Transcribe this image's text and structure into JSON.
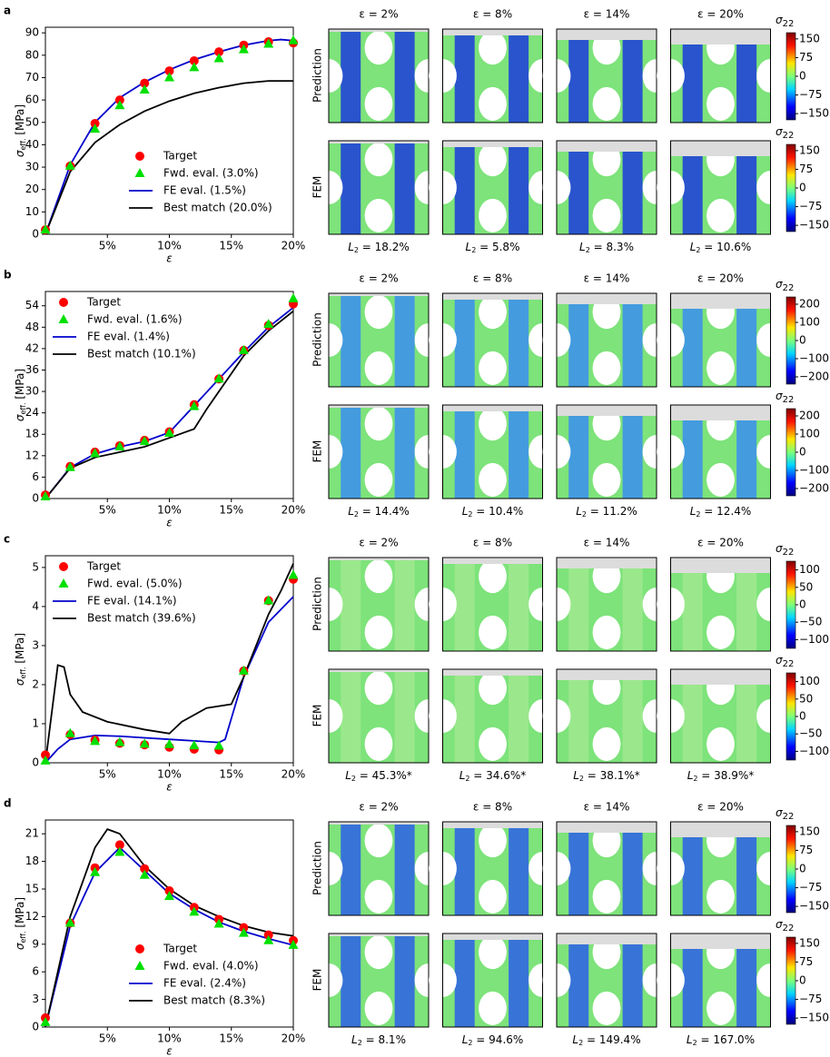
{
  "chart_data": [
    {
      "type": "line",
      "xlabel": "ε",
      "ylabel": [
        "σ",
        "eff.",
        " [MPa]"
      ],
      "legend": "lower right",
      "x": [
        0,
        2,
        4,
        6,
        8,
        10,
        12,
        14,
        16,
        18,
        20
      ],
      "xlim": [
        0,
        20
      ],
      "xticks": [
        {
          "value": 5,
          "label": "5%"
        },
        {
          "value": 10,
          "label": "10%"
        },
        {
          "value": 15,
          "label": "15%"
        },
        {
          "value": 20,
          "label": "20%"
        }
      ],
      "ylim": [
        0,
        92.5
      ],
      "yticks": [
        0,
        10,
        20,
        30,
        40,
        50,
        60,
        70,
        80,
        90
      ],
      "series": [
        {
          "name": "Target",
          "color": "#ff0000",
          "marker": "circle",
          "values": [
            2,
            30.5,
            49.5,
            60,
            67.5,
            73,
            77.5,
            81.5,
            84.5,
            86,
            85.5
          ]
        },
        {
          "name": "Fwd. eval. (3.0%)",
          "color": "#00e000",
          "marker": "triangle",
          "values": [
            2,
            30.5,
            47,
            57.5,
            64.5,
            70,
            74.5,
            78.5,
            82.5,
            85,
            86.5
          ]
        },
        {
          "name": "FE eval. (1.5%)",
          "color": "#0000cc",
          "x": [
            0,
            2,
            4,
            6,
            8,
            10,
            12,
            14,
            16,
            18,
            19,
            20
          ],
          "values": [
            0,
            31,
            50,
            61,
            68,
            73.5,
            78,
            81.5,
            84.5,
            86.5,
            87,
            86.5
          ]
        },
        {
          "name": "Best match (20.0%)",
          "color": "#000000",
          "x": [
            0,
            2,
            4,
            6,
            8,
            10,
            12,
            14,
            16,
            18,
            20
          ],
          "values": [
            0,
            28,
            41,
            49,
            55,
            59.5,
            63,
            65.5,
            67.5,
            68.5,
            68.5
          ]
        }
      ]
    },
    {
      "type": "line",
      "xlabel": "ε",
      "ylabel": [
        "σ",
        "eff.",
        " [MPa]"
      ],
      "legend": "upper left",
      "x": [
        0,
        2,
        4,
        6,
        8,
        10,
        12,
        14,
        16,
        18,
        20
      ],
      "xlim": [
        0,
        20
      ],
      "xticks": [
        {
          "value": 5,
          "label": "5%"
        },
        {
          "value": 10,
          "label": "10%"
        },
        {
          "value": 15,
          "label": "15%"
        },
        {
          "value": 20,
          "label": "20%"
        }
      ],
      "ylim": [
        0,
        58
      ],
      "yticks": [
        0,
        6,
        12,
        18,
        24,
        30,
        36,
        42,
        48,
        54
      ],
      "series": [
        {
          "name": "Target",
          "color": "#ff0000",
          "marker": "circle",
          "values": [
            1,
            9,
            13,
            14.8,
            16.3,
            18.7,
            26.3,
            33.5,
            41.5,
            48.5,
            54.5
          ]
        },
        {
          "name": "Fwd. eval. (1.6%)",
          "color": "#00e000",
          "marker": "triangle",
          "values": [
            0.5,
            8.7,
            12.6,
            14.5,
            16,
            18.3,
            25.8,
            33.5,
            41.5,
            48.8,
            56
          ]
        },
        {
          "name": "FE eval. (1.4%)",
          "color": "#0000cc",
          "x": [
            0,
            2,
            4,
            6,
            8,
            10,
            12,
            14,
            16,
            18,
            20
          ],
          "values": [
            0,
            8.7,
            12.5,
            14.5,
            16,
            18.5,
            26,
            33.5,
            41,
            48,
            53.5
          ]
        },
        {
          "name": "Best match (10.1%)",
          "color": "#000000",
          "x": [
            0,
            2,
            4,
            6,
            8,
            10,
            12,
            13,
            14,
            16,
            18,
            20
          ],
          "values": [
            0,
            8.5,
            11.5,
            13,
            14.5,
            17,
            19.5,
            25,
            30,
            40,
            47,
            52.5
          ]
        }
      ]
    },
    {
      "type": "line",
      "xlabel": "ε",
      "ylabel": [
        "σ",
        "eff.",
        " [MPa]"
      ],
      "legend": "upper left",
      "x": [
        0,
        2,
        4,
        6,
        8,
        10,
        12,
        14,
        16,
        18,
        20
      ],
      "xlim": [
        0,
        20
      ],
      "xticks": [
        {
          "value": 5,
          "label": "5%"
        },
        {
          "value": 10,
          "label": "10%"
        },
        {
          "value": 15,
          "label": "15%"
        },
        {
          "value": 20,
          "label": "20%"
        }
      ],
      "ylim": [
        0,
        5.3
      ],
      "yticks": [
        0,
        1,
        2,
        3,
        4,
        5
      ],
      "series": [
        {
          "name": "Target",
          "color": "#ff0000",
          "marker": "circle",
          "values": [
            0.2,
            0.72,
            0.58,
            0.5,
            0.46,
            0.4,
            0.35,
            0.33,
            2.35,
            4.15,
            4.7
          ]
        },
        {
          "name": "Fwd. eval. (5.0%)",
          "color": "#00e000",
          "marker": "triangle",
          "values": [
            0.05,
            0.75,
            0.55,
            0.52,
            0.48,
            0.47,
            0.44,
            0.43,
            2.35,
            4.15,
            4.8
          ]
        },
        {
          "name": "FE eval. (14.1%)",
          "color": "#0000cc",
          "x": [
            0,
            1,
            2,
            4,
            6,
            8,
            10,
            12,
            14,
            14.5,
            16,
            18,
            20
          ],
          "values": [
            0,
            0.35,
            0.6,
            0.7,
            0.68,
            0.64,
            0.6,
            0.56,
            0.52,
            0.6,
            2.2,
            3.6,
            4.25
          ]
        },
        {
          "name": "Best match (39.6%)",
          "color": "#000000",
          "x": [
            0,
            1,
            1.5,
            2,
            3,
            5,
            8,
            10,
            11,
            13,
            15,
            16,
            17,
            18,
            19,
            20
          ],
          "values": [
            0,
            2.5,
            2.45,
            1.75,
            1.3,
            1.05,
            0.85,
            0.75,
            1.05,
            1.4,
            1.5,
            2.2,
            3.0,
            3.8,
            4.4,
            5.1
          ]
        }
      ]
    },
    {
      "type": "line",
      "xlabel": "ε",
      "ylabel": [
        "σ",
        "eff.",
        " [MPa]"
      ],
      "legend": "lower right",
      "x": [
        0,
        2,
        4,
        6,
        8,
        10,
        12,
        14,
        16,
        18,
        20
      ],
      "xlim": [
        0,
        20
      ],
      "xticks": [
        {
          "value": 5,
          "label": "5%"
        },
        {
          "value": 10,
          "label": "10%"
        },
        {
          "value": 15,
          "label": "15%"
        },
        {
          "value": 20,
          "label": "20%"
        }
      ],
      "ylim": [
        0,
        22.5
      ],
      "yticks": [
        0,
        3,
        6,
        9,
        12,
        15,
        18,
        21
      ],
      "series": [
        {
          "name": "Target",
          "color": "#ff0000",
          "marker": "circle",
          "values": [
            1,
            11.3,
            17.3,
            19.8,
            17.2,
            14.8,
            13,
            11.7,
            10.8,
            10,
            9.4
          ]
        },
        {
          "name": "Fwd. eval. (4.0%)",
          "color": "#00e000",
          "marker": "triangle",
          "values": [
            0.5,
            11.3,
            16.8,
            19,
            16.5,
            14.2,
            12.5,
            11.2,
            10.2,
            9.4,
            8.9
          ]
        },
        {
          "name": "FE eval. (2.4%)",
          "color": "#0000cc",
          "x": [
            0,
            2,
            4,
            6,
            8,
            10,
            12,
            14,
            16,
            18,
            20
          ],
          "values": [
            0,
            11,
            16.8,
            19.5,
            17,
            14.5,
            12.8,
            11.4,
            10.4,
            9.6,
            8.9
          ]
        },
        {
          "name": "Best match (8.3%)",
          "color": "#000000",
          "x": [
            0,
            2,
            4,
            5,
            6,
            8,
            10,
            12,
            14,
            16,
            18,
            20
          ],
          "values": [
            0,
            12,
            19.5,
            21.5,
            21,
            17.5,
            15,
            13.2,
            12,
            11,
            10.3,
            9.9
          ]
        }
      ]
    }
  ],
  "panels": [
    {
      "label": "a",
      "columns": [
        "ε = 2%",
        "ε = 8%",
        "ε = 14%",
        "ε = 20%"
      ],
      "rows": [
        "Prediction",
        "FEM"
      ],
      "l2_symbol": "L",
      "l2_sub": "2",
      "l2_values": [
        " = 18.2%",
        " = 5.8%",
        " = 8.3%",
        " = 10.6%"
      ],
      "colorbar": {
        "symbol": "σ",
        "sub": "22",
        "clim": [
          -175,
          175
        ],
        "ticks": [
          150,
          75,
          0,
          {
            "value": -75,
            "label": "−75"
          },
          {
            "value": -150,
            "label": "−150"
          }
        ]
      }
    },
    {
      "label": "b",
      "columns": [
        "ε = 2%",
        "ε = 8%",
        "ε = 14%",
        "ε = 20%"
      ],
      "rows": [
        "Prediction",
        "FEM"
      ],
      "l2_symbol": "L",
      "l2_sub": "2",
      "l2_values": [
        " = 14.4%",
        " = 10.4%",
        " = 11.2%",
        " = 12.4%"
      ],
      "colorbar": {
        "symbol": "σ",
        "sub": "22",
        "clim": [
          -240,
          240
        ],
        "ticks": [
          200,
          100,
          0,
          {
            "value": -100,
            "label": "−100"
          },
          {
            "value": -200,
            "label": "−200"
          }
        ]
      }
    },
    {
      "label": "c",
      "columns": [
        "ε = 2%",
        "ε = 8%",
        "ε = 14%",
        "ε = 20%"
      ],
      "rows": [
        "Prediction",
        "FEM"
      ],
      "l2_symbol": "L",
      "l2_sub": "2",
      "l2_values": [
        " = 45.3%*",
        " = 34.6%*",
        " = 38.1%*",
        " = 38.9%*"
      ],
      "colorbar": {
        "symbol": "σ",
        "sub": "22",
        "clim": [
          -125,
          125
        ],
        "ticks": [
          100,
          50,
          0,
          {
            "value": -50,
            "label": "−50"
          },
          {
            "value": -100,
            "label": "−100"
          }
        ]
      }
    },
    {
      "label": "d",
      "columns": [
        "ε = 2%",
        "ε = 8%",
        "ε = 14%",
        "ε = 20%"
      ],
      "rows": [
        "Prediction",
        "FEM"
      ],
      "l2_symbol": "L",
      "l2_sub": "2",
      "l2_values": [
        " = 8.1%",
        " = 94.6%",
        " = 149.4%",
        " = 167.0%"
      ],
      "colorbar": {
        "symbol": "σ",
        "sub": "22",
        "clim": [
          -175,
          175
        ],
        "ticks": [
          150,
          75,
          0,
          {
            "value": -75,
            "label": "−75"
          },
          {
            "value": -150,
            "label": "−150"
          }
        ]
      }
    }
  ]
}
